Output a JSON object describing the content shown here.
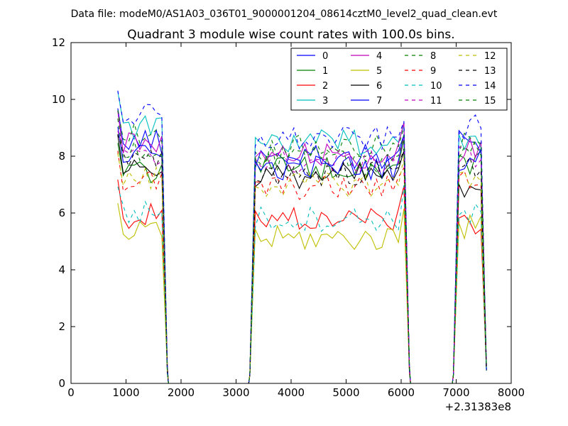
{
  "chart_data": {
    "type": "line",
    "suptitle": "Data file: modeM0/AS1A03_036T01_9000001204_08614cztM0_level2_quad_clean.evt",
    "title": "Quadrant 3 module wise count rates with 100.0s bins.",
    "xlabel": "",
    "ylabel": "",
    "xlim": [
      0,
      8000
    ],
    "ylim": [
      0,
      12
    ],
    "x_offset_label": "+2.31383e8",
    "x_ticks": [
      0,
      1000,
      2000,
      3000,
      4000,
      5000,
      6000,
      7000,
      8000
    ],
    "y_ticks": [
      0,
      2,
      4,
      6,
      8,
      10,
      12
    ],
    "grid": false,
    "legend_position": "top-right",
    "legend_columns": 4,
    "segments": [
      {
        "start": 850,
        "end": 1750,
        "bin": 100
      },
      {
        "start": 3250,
        "end": 6150,
        "bin": 100
      },
      {
        "start": 6950,
        "end": 7550,
        "bin": 100
      }
    ],
    "series": [
      {
        "name": "0",
        "color": "#0000ff",
        "dash": "solid",
        "levels": [
          8.5,
          8.0,
          8.5
        ]
      },
      {
        "name": "1",
        "color": "#008000",
        "dash": "solid",
        "levels": [
          7.5,
          7.6,
          7.8
        ]
      },
      {
        "name": "2",
        "color": "#ff0000",
        "dash": "solid",
        "levels": [
          5.9,
          5.8,
          5.7
        ]
      },
      {
        "name": "3",
        "color": "#00bfbf",
        "dash": "solid",
        "levels": [
          9.0,
          8.5,
          8.5
        ]
      },
      {
        "name": "4",
        "color": "#bf00bf",
        "dash": "solid",
        "levels": [
          8.4,
          8.0,
          8.2
        ]
      },
      {
        "name": "5",
        "color": "#bfbf00",
        "dash": "solid",
        "levels": [
          5.3,
          5.1,
          5.5
        ]
      },
      {
        "name": "6",
        "color": "#000000",
        "dash": "solid",
        "levels": [
          7.6,
          7.3,
          7.0
        ]
      },
      {
        "name": "7",
        "color": "#0000ff",
        "dash": "solid",
        "levels": [
          8.0,
          7.6,
          7.9
        ]
      },
      {
        "name": "8",
        "color": "#008000",
        "dash": "dashed",
        "levels": [
          8.8,
          8.3,
          8.4
        ]
      },
      {
        "name": "9",
        "color": "#ff0000",
        "dash": "dashed",
        "levels": [
          7.1,
          6.9,
          7.2
        ]
      },
      {
        "name": "10",
        "color": "#00bfbf",
        "dash": "dashed",
        "levels": [
          6.0,
          5.8,
          5.9
        ]
      },
      {
        "name": "11",
        "color": "#bf00bf",
        "dash": "dashed",
        "levels": [
          7.9,
          7.8,
          8.0
        ]
      },
      {
        "name": "12",
        "color": "#bfbf00",
        "dash": "dashed",
        "levels": [
          7.2,
          7.0,
          7.3
        ]
      },
      {
        "name": "13",
        "color": "#000000",
        "dash": "dashed",
        "levels": [
          7.8,
          7.4,
          7.6
        ]
      },
      {
        "name": "14",
        "color": "#0000ff",
        "dash": "dashed",
        "levels": [
          9.4,
          8.6,
          9.0
        ]
      },
      {
        "name": "15",
        "color": "#008000",
        "dash": "dashed",
        "levels": [
          8.3,
          7.9,
          8.1
        ]
      }
    ]
  }
}
